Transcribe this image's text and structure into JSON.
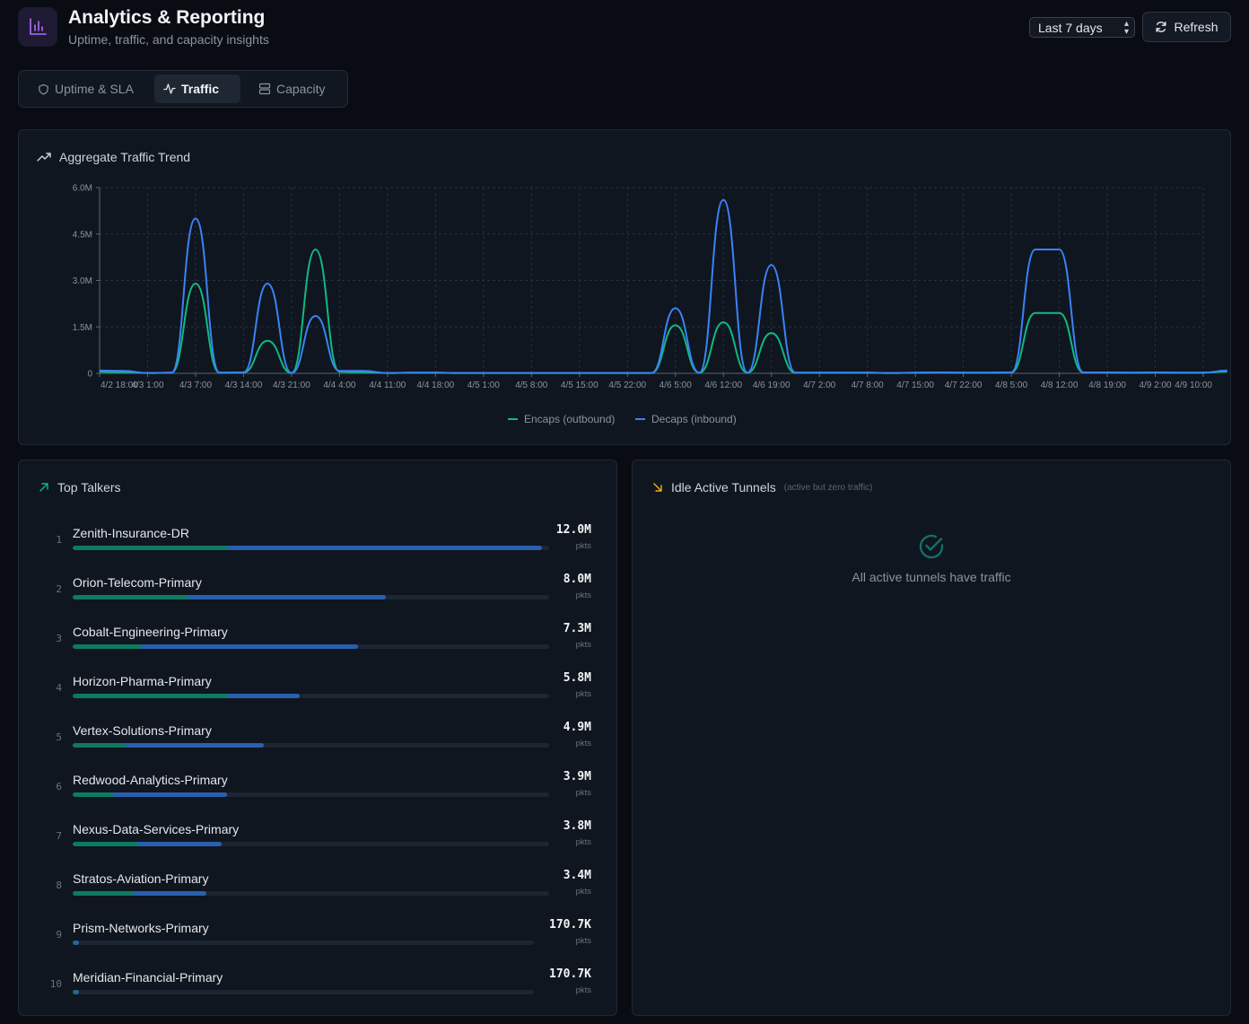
{
  "header": {
    "title": "Analytics & Reporting",
    "subtitle": "Uptime, traffic, and capacity insights",
    "range_selected": "Last 7 days",
    "refresh_label": "Refresh",
    "app_icon": "bar-chart-icon"
  },
  "tabs": [
    {
      "label": "Uptime & SLA",
      "icon": "shield-icon",
      "active": false
    },
    {
      "label": "Traffic",
      "icon": "activity-icon",
      "active": true
    },
    {
      "label": "Capacity",
      "icon": "server-icon",
      "active": false
    }
  ],
  "traffic_card": {
    "title": "Aggregate Traffic Trend",
    "icon": "trending-up-icon"
  },
  "colors": {
    "encaps": "#10b981",
    "decaps": "#3b82f6",
    "accent": "#a855f7",
    "warning": "#f5b014",
    "success": "#14b8a6"
  },
  "chart_data": {
    "type": "line",
    "title": "Aggregate Traffic Trend",
    "y_ticks": [
      "0",
      "1.5M",
      "3.0M",
      "4.5M",
      "6.0M"
    ],
    "ylim": [
      0,
      6000000
    ],
    "x_ticks": [
      "4/2 18:00",
      "4/3 1:00",
      "4/3 7:00",
      "4/3 14:00",
      "4/3 21:00",
      "4/4 4:00",
      "4/4 11:00",
      "4/4 18:00",
      "4/5 1:00",
      "4/5 8:00",
      "4/5 15:00",
      "4/5 22:00",
      "4/6 5:00",
      "4/6 12:00",
      "4/6 19:00",
      "4/7 2:00",
      "4/7 8:00",
      "4/7 15:00",
      "4/7 22:00",
      "4/8 5:00",
      "4/8 12:00",
      "4/8 19:00",
      "4/9 2:00",
      "4/9 10:00"
    ],
    "grid": true,
    "legend_position": "bottom-center",
    "series": [
      {
        "name": "Encaps (outbound)",
        "color": "#10b981",
        "x": [
          0,
          0.5,
          1,
          1.5,
          2,
          2.5,
          3,
          3.5,
          4,
          4.5,
          5,
          5.5,
          6,
          6.5,
          7,
          7.5,
          8,
          8.5,
          9,
          9.5,
          10,
          10.5,
          11,
          11.5,
          12,
          12.5,
          13,
          13.5,
          14,
          14.5,
          15,
          15.5,
          16,
          16.5,
          17,
          17.5,
          18,
          18.5,
          19,
          19.5,
          20,
          20.5,
          21,
          21.5,
          22,
          22.5,
          23,
          23.5
        ],
        "values": [
          50000,
          40000,
          10000,
          20000,
          2900000,
          20000,
          30000,
          1050000,
          10000,
          4000000,
          50000,
          40000,
          10000,
          20000,
          20000,
          10000,
          10000,
          10000,
          10000,
          10000,
          10000,
          10000,
          10000,
          10000,
          1550000,
          20000,
          1650000,
          20000,
          1300000,
          20000,
          20000,
          20000,
          20000,
          10000,
          20000,
          30000,
          20000,
          20000,
          30000,
          1950000,
          1950000,
          30000,
          30000,
          20000,
          30000,
          20000,
          20000,
          50000
        ]
      },
      {
        "name": "Decaps (inbound)",
        "color": "#3b82f6",
        "x": [
          0,
          0.5,
          1,
          1.5,
          2,
          2.5,
          3,
          3.5,
          4,
          4.5,
          5,
          5.5,
          6,
          6.5,
          7,
          7.5,
          8,
          8.5,
          9,
          9.5,
          10,
          10.5,
          11,
          11.5,
          12,
          12.5,
          13,
          13.5,
          14,
          14.5,
          15,
          15.5,
          16,
          16.5,
          17,
          17.5,
          18,
          18.5,
          19,
          19.5,
          20,
          20.5,
          21,
          21.5,
          22,
          22.5,
          23,
          23.5
        ],
        "values": [
          90000,
          80000,
          10000,
          20000,
          5000000,
          20000,
          30000,
          2900000,
          10000,
          1850000,
          80000,
          80000,
          10000,
          20000,
          20000,
          10000,
          10000,
          10000,
          10000,
          10000,
          10000,
          10000,
          10000,
          10000,
          2100000,
          20000,
          5600000,
          20000,
          3500000,
          20000,
          20000,
          20000,
          20000,
          10000,
          20000,
          30000,
          20000,
          20000,
          30000,
          4000000,
          4000000,
          30000,
          30000,
          20000,
          30000,
          20000,
          20000,
          90000
        ]
      }
    ]
  },
  "top_talkers": {
    "title": "Top Talkers",
    "icon": "arrow-up-right-icon",
    "unit": "pkts",
    "items": [
      {
        "rank": "1",
        "name": "Zenith-Insurance-DR",
        "value": "12.0M",
        "total": 1.0,
        "encaps_share": 0.33
      },
      {
        "rank": "2",
        "name": "Orion-Telecom-Primary",
        "value": "8.0M",
        "total": 0.667,
        "encaps_share": 0.37
      },
      {
        "rank": "3",
        "name": "Cobalt-Engineering-Primary",
        "value": "7.3M",
        "total": 0.608,
        "encaps_share": 0.24
      },
      {
        "rank": "4",
        "name": "Horizon-Pharma-Primary",
        "value": "5.8M",
        "total": 0.483,
        "encaps_share": 0.68
      },
      {
        "rank": "5",
        "name": "Vertex-Solutions-Primary",
        "value": "4.9M",
        "total": 0.408,
        "encaps_share": 0.27
      },
      {
        "rank": "6",
        "name": "Redwood-Analytics-Primary",
        "value": "3.9M",
        "total": 0.329,
        "encaps_share": 0.27
      },
      {
        "rank": "7",
        "name": "Nexus-Data-Services-Primary",
        "value": "3.8M",
        "total": 0.318,
        "encaps_share": 0.44
      },
      {
        "rank": "8",
        "name": "Stratos-Aviation-Primary",
        "value": "3.4M",
        "total": 0.284,
        "encaps_share": 0.46
      },
      {
        "rank": "9",
        "name": "Prism-Networks-Primary",
        "value": "170.7K",
        "total": 0.014,
        "encaps_share": 0.4
      },
      {
        "rank": "10",
        "name": "Meridian-Financial-Primary",
        "value": "170.7K",
        "total": 0.014,
        "encaps_share": 0.4
      }
    ]
  },
  "idle_tunnels": {
    "title": "Idle Active Tunnels",
    "note": "(active but zero traffic)",
    "icon": "arrow-down-right-icon",
    "empty_icon": "check-circle-icon",
    "empty_message": "All active tunnels have traffic"
  }
}
